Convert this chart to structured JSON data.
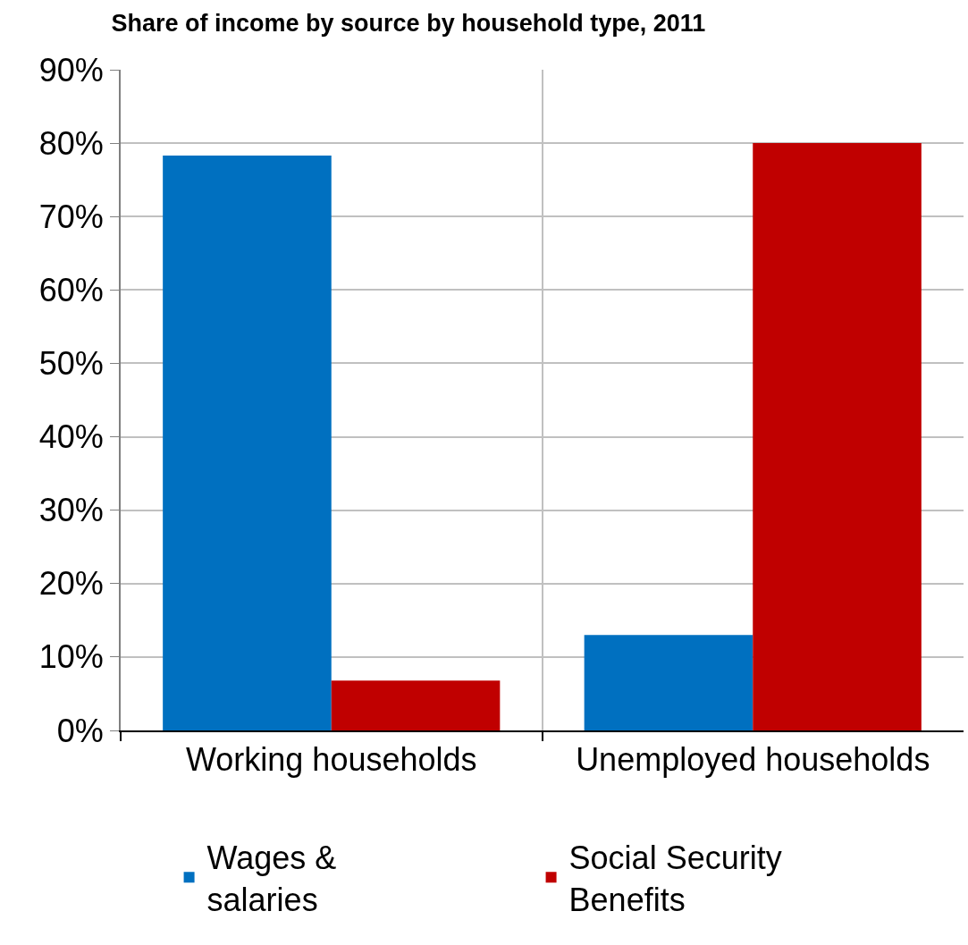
{
  "chart_data": {
    "type": "bar",
    "title": "Share of income by source by household type, 2011",
    "categories": [
      "Working households",
      "Unemployed households"
    ],
    "series": [
      {
        "name": "Wages & salaries",
        "color": "#0070c0",
        "values": [
          78.3,
          13.0
        ]
      },
      {
        "name": "Social Security Benefits",
        "color": "#c00000",
        "values": [
          6.8,
          80.0
        ]
      }
    ],
    "ylim": [
      0,
      90
    ],
    "yticks": [
      {
        "value": 0,
        "label": "0%"
      },
      {
        "value": 10,
        "label": "10%"
      },
      {
        "value": 20,
        "label": "20%"
      },
      {
        "value": 30,
        "label": "30%"
      },
      {
        "value": 40,
        "label": "40%"
      },
      {
        "value": 50,
        "label": "50%"
      },
      {
        "value": 60,
        "label": "60%"
      },
      {
        "value": 70,
        "label": "70%"
      },
      {
        "value": 80,
        "label": "80%"
      },
      {
        "value": 90,
        "label": "90%"
      }
    ],
    "grid": true,
    "legend": "bottom"
  }
}
